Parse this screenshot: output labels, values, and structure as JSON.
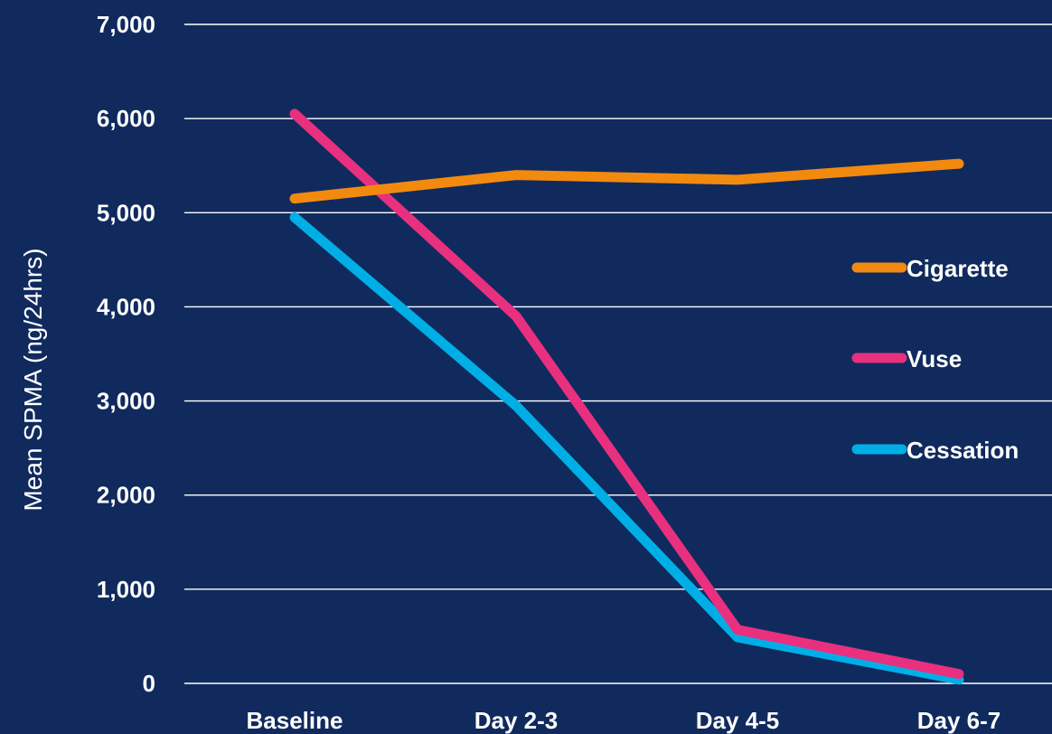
{
  "chart_data": {
    "type": "line",
    "title": "",
    "xlabel": "",
    "ylabel": "Mean SPMA (ng/24hrs)",
    "categories": [
      "Baseline",
      "Day 2-3",
      "Day 4-5",
      "Day 6-7"
    ],
    "ylim": [
      0,
      7000
    ],
    "yticks": [
      0,
      1000,
      2000,
      3000,
      4000,
      5000,
      6000,
      7000
    ],
    "ytick_labels": [
      "0",
      "1,000",
      "2,000",
      "3,000",
      "4,000",
      "5,000",
      "6,000",
      "7,000"
    ],
    "grid": true,
    "legend_position": "right",
    "series": [
      {
        "name": "Cigarette",
        "color": "#f28a0f",
        "values": [
          5150,
          5400,
          5350,
          5520
        ]
      },
      {
        "name": "Vuse",
        "color": "#e8307f",
        "values": [
          6050,
          3900,
          570,
          100
        ]
      },
      {
        "name": "Cessation",
        "color": "#00aee6",
        "values": [
          4950,
          2950,
          490,
          40
        ]
      }
    ]
  }
}
